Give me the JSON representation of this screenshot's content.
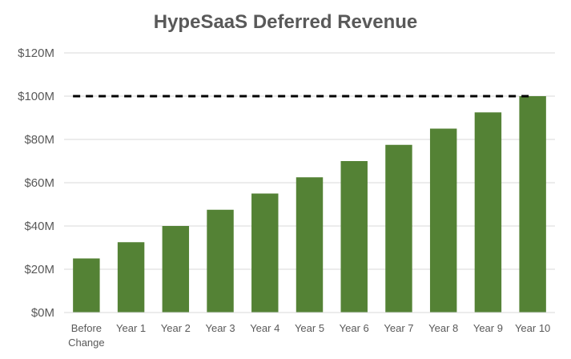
{
  "chart_data": {
    "type": "bar",
    "title": "HypeSaaS Deferred Revenue",
    "xlabel": "",
    "ylabel": "",
    "categories": [
      [
        "Before",
        "Change"
      ],
      [
        "Year 1"
      ],
      [
        "Year 2"
      ],
      [
        "Year 3"
      ],
      [
        "Year 4"
      ],
      [
        "Year 5"
      ],
      [
        "Year 6"
      ],
      [
        "Year 7"
      ],
      [
        "Year 8"
      ],
      [
        "Year 9"
      ],
      [
        "Year 10"
      ]
    ],
    "values": [
      25,
      32.5,
      40,
      47.5,
      55,
      62.5,
      70,
      77.5,
      85,
      92.5,
      100
    ],
    "ylim": [
      0,
      120
    ],
    "yticks": [
      0,
      20,
      40,
      60,
      80,
      100,
      120
    ],
    "ytick_labels": [
      "$0M",
      "$20M",
      "$40M",
      "$60M",
      "$80M",
      "$100M",
      "$120M"
    ],
    "reference_line": {
      "value": 100,
      "style": "dashed",
      "color": "#000000"
    },
    "bar_color": "#548235",
    "gridline_color": "#d9d9d9",
    "grid": true,
    "legend": "none"
  }
}
